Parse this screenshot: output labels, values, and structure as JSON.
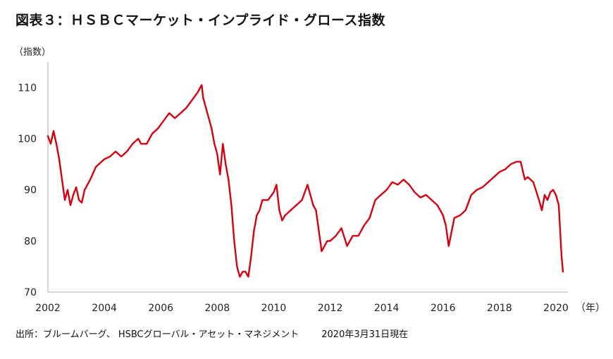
{
  "title": "図表３：ＨＳＢＣマーケット・インプライド・グロース指数",
  "source": "出所：ブルームバーグ、 HSBCグローバル・アセット・マネジメント",
  "date": "2020年3月31日現在",
  "chart_data": {
    "type": "line",
    "title": "",
    "ylabel": "（指数）",
    "xlabel": "（年）",
    "xlim": [
      2002,
      2020.3
    ],
    "ylim": [
      70,
      115
    ],
    "x_ticks": [
      2002,
      2004,
      2006,
      2008,
      2010,
      2012,
      2014,
      2016,
      2018,
      2020
    ],
    "x_tick_labels": [
      "2002",
      "2004",
      "2006",
      "2008",
      "2010",
      "2012",
      "2014",
      "2016",
      "2018",
      "2020"
    ],
    "y_ticks": [
      70,
      80,
      90,
      100,
      110
    ],
    "y_tick_labels": [
      "70",
      "80",
      "90",
      "100",
      "110"
    ],
    "grid": false,
    "color": "#d7000f",
    "series": [
      {
        "name": "",
        "x": [
          2002.0,
          2002.1,
          2002.2,
          2002.3,
          2002.4,
          2002.5,
          2002.6,
          2002.7,
          2002.8,
          2002.9,
          2003.0,
          2003.1,
          2003.2,
          2003.3,
          2003.5,
          2003.7,
          2003.9,
          2004.0,
          2004.2,
          2004.4,
          2004.6,
          2004.8,
          2005.0,
          2005.2,
          2005.3,
          2005.5,
          2005.7,
          2005.9,
          2006.1,
          2006.3,
          2006.5,
          2006.7,
          2006.9,
          2007.1,
          2007.3,
          2007.45,
          2007.5,
          2007.6,
          2007.7,
          2007.8,
          2007.9,
          2008.0,
          2008.1,
          2008.2,
          2008.3,
          2008.4,
          2008.5,
          2008.6,
          2008.7,
          2008.8,
          2008.9,
          2009.0,
          2009.1,
          2009.2,
          2009.3,
          2009.4,
          2009.5,
          2009.6,
          2009.8,
          2010.0,
          2010.1,
          2010.2,
          2010.3,
          2010.4,
          2010.6,
          2010.8,
          2011.0,
          2011.2,
          2011.3,
          2011.4,
          2011.5,
          2011.6,
          2011.7,
          2011.8,
          2011.9,
          2012.0,
          2012.2,
          2012.4,
          2012.6,
          2012.8,
          2013.0,
          2013.2,
          2013.4,
          2013.6,
          2013.8,
          2014.0,
          2014.2,
          2014.4,
          2014.6,
          2014.8,
          2015.0,
          2015.2,
          2015.4,
          2015.6,
          2015.8,
          2016.0,
          2016.1,
          2016.2,
          2016.4,
          2016.6,
          2016.8,
          2017.0,
          2017.2,
          2017.4,
          2017.6,
          2017.8,
          2018.0,
          2018.2,
          2018.4,
          2018.6,
          2018.75,
          2018.9,
          2019.0,
          2019.2,
          2019.4,
          2019.5,
          2019.6,
          2019.7,
          2019.8,
          2019.9,
          2020.0,
          2020.1,
          2020.15,
          2020.2,
          2020.25
        ],
        "values": [
          100.5,
          99,
          101.5,
          99,
          96,
          92,
          88,
          90,
          87,
          89,
          90.5,
          88,
          87.5,
          90,
          92,
          94.5,
          95.5,
          96,
          96.5,
          97.5,
          96.5,
          97.5,
          99,
          100,
          99,
          99,
          101,
          102,
          103.5,
          105,
          104,
          105,
          106,
          107.5,
          109,
          110.5,
          108,
          106,
          104,
          102,
          99,
          97,
          93,
          99,
          95,
          92,
          87,
          80,
          75,
          73,
          74,
          74,
          73,
          77,
          82,
          85,
          86,
          88,
          88,
          89.5,
          91,
          86,
          84,
          85,
          86,
          87,
          88,
          91,
          89,
          87,
          86,
          82,
          78,
          79,
          80,
          80,
          81,
          82.5,
          79,
          81,
          81,
          83,
          84.5,
          88,
          89,
          90,
          91.5,
          91,
          92,
          91,
          89.5,
          88.5,
          89,
          88,
          87,
          85,
          83,
          79,
          84.5,
          85,
          86,
          89,
          90,
          90.5,
          91.5,
          92.5,
          93.5,
          94,
          95,
          95.5,
          95.5,
          92,
          92.5,
          91.5,
          88,
          86,
          89,
          88,
          89.5,
          90,
          89,
          87,
          82,
          77,
          74
        ]
      }
    ]
  }
}
